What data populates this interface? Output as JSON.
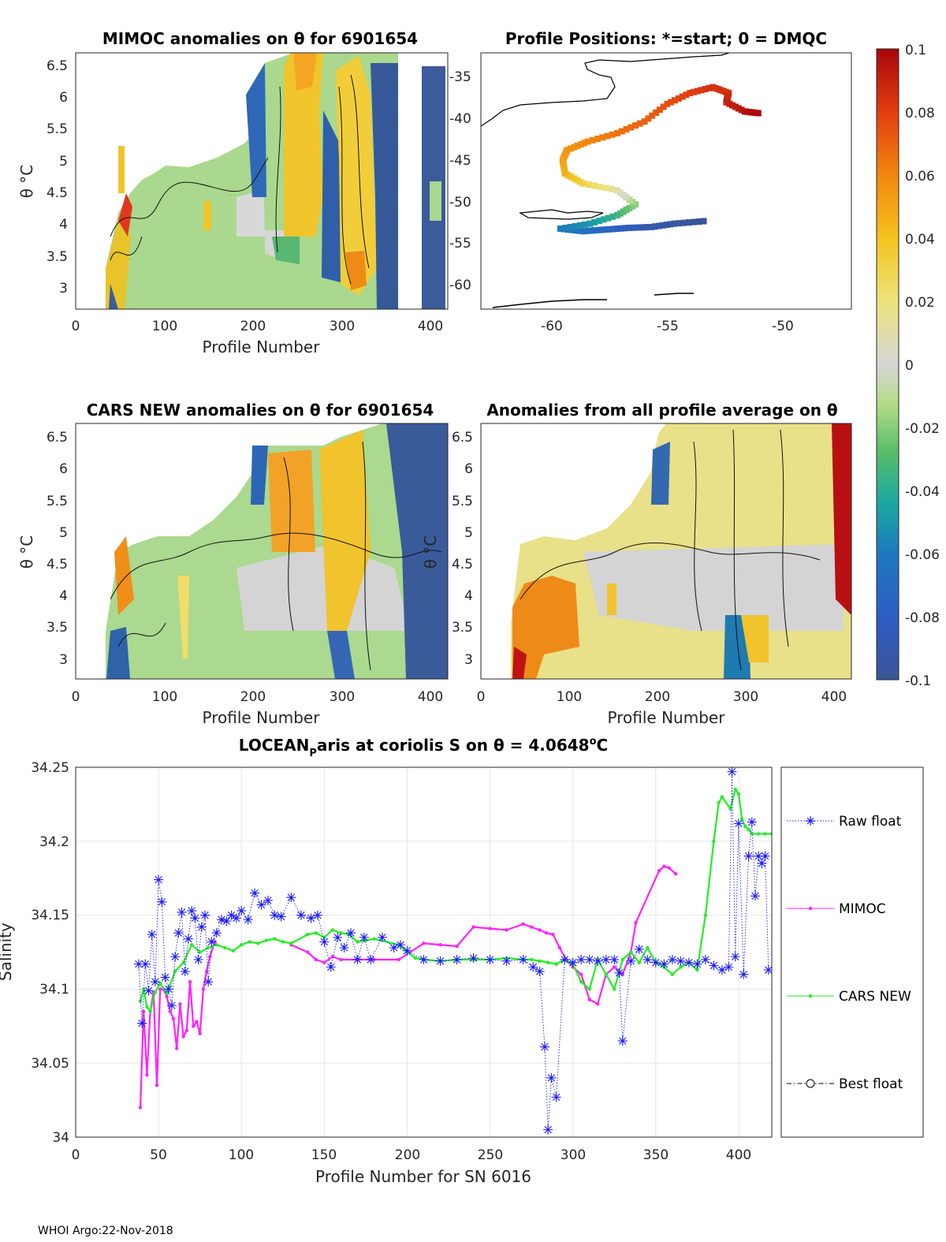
{
  "footer": "WHOI Argo:22-Nov-2018",
  "colors": {
    "raw_float": "#1a1aff",
    "mimoc": "#ff22ff",
    "cars_new": "#22ee22",
    "best_float": "#000000",
    "grid": "#e6e6e6"
  },
  "colorbar": {
    "ticks": [
      "0.1",
      "0.08",
      "0.06",
      "0.04",
      "0.02",
      "0",
      "-0.02",
      "-0.04",
      "-0.06",
      "-0.08",
      "-0.1"
    ],
    "colormap": "parula-like diverging (blue-green-grey-yellow-red)"
  },
  "chart_data": [
    {
      "type": "heatmap",
      "title": "MIMOC anomalies on θ  for 6901654",
      "xlabel": "Profile Number",
      "ylabel": "θ °C",
      "xlim": [
        0,
        420
      ],
      "ylim": [
        2.65,
        6.7
      ],
      "xticks": [
        "0",
        "100",
        "200",
        "300",
        "400"
      ],
      "yticks": [
        "3",
        "3.5",
        "4",
        "4.5",
        "5",
        "5.5",
        "6",
        "6.5"
      ],
      "clim": [
        -0.1,
        0.1
      ]
    },
    {
      "type": "scatter",
      "title": "Profile Positions: *=start; 0 = DMQC",
      "xlabel": "",
      "ylabel": "",
      "xlim": [
        -63.0,
        -46.7
      ],
      "ylim": [
        -63.0,
        -32.4
      ],
      "xticks": [
        "-60",
        "-55",
        "-50"
      ],
      "yticks": [
        "-35",
        "-40",
        "-45",
        "-50",
        "-55",
        "-60"
      ],
      "track": [
        [
          -53.2,
          -52.5
        ],
        [
          -54.5,
          -52.8
        ],
        [
          -55.5,
          -53.2
        ],
        [
          -56.5,
          -53.3
        ],
        [
          -57.5,
          -53.5
        ],
        [
          -58.5,
          -53.7
        ],
        [
          -59.5,
          -53.4
        ],
        [
          -58.2,
          -52.8
        ],
        [
          -57.0,
          -51.8
        ],
        [
          -56.2,
          -50.5
        ],
        [
          -57.0,
          -48.8
        ],
        [
          -58.5,
          -48.0
        ],
        [
          -59.3,
          -46.8
        ],
        [
          -59.4,
          -45.2
        ],
        [
          -59.2,
          -44.0
        ],
        [
          -58.3,
          -43.0
        ],
        [
          -57.0,
          -42.0
        ],
        [
          -55.8,
          -40.6
        ],
        [
          -54.8,
          -38.5
        ],
        [
          -53.8,
          -37.2
        ],
        [
          -52.8,
          -36.5
        ],
        [
          -52.1,
          -37.2
        ],
        [
          -52.2,
          -38.3
        ],
        [
          -51.4,
          -39.4
        ],
        [
          -50.8,
          -39.6
        ]
      ],
      "track_anomaly": [
        -0.1,
        -0.095,
        -0.09,
        -0.085,
        -0.075,
        -0.065,
        -0.06,
        -0.05,
        -0.035,
        -0.02,
        0.01,
        0.03,
        0.045,
        0.05,
        0.055,
        0.06,
        0.065,
        0.07,
        0.075,
        0.08,
        0.085,
        0.085,
        0.09,
        0.095,
        0.1
      ]
    },
    {
      "type": "heatmap",
      "title": "CARS NEW anomalies on θ for 6901654",
      "xlabel": "Profile Number",
      "ylabel": "θ °C",
      "xlim": [
        0,
        420
      ],
      "ylim": [
        2.65,
        6.7
      ],
      "xticks": [
        "0",
        "100",
        "200",
        "300",
        "400"
      ],
      "yticks": [
        "3",
        "3.5",
        "4",
        "4.5",
        "5",
        "5.5",
        "6",
        "6.5"
      ],
      "clim": [
        -0.1,
        0.1
      ]
    },
    {
      "type": "heatmap",
      "title": "Anomalies from all profile average on θ",
      "xlabel": "Profile Number",
      "ylabel": "θ °C",
      "xlim": [
        0,
        420
      ],
      "ylim": [
        2.65,
        6.7
      ],
      "xticks": [
        "0",
        "100",
        "200",
        "300",
        "400"
      ],
      "yticks": [
        "3",
        "3.5",
        "4",
        "4.5",
        "5",
        "5.5",
        "6",
        "6.5"
      ],
      "clim": [
        -0.1,
        0.1
      ]
    },
    {
      "type": "line",
      "title_main": "LOCEAN",
      "title_sub": "P",
      "title_rest": "aris at coriolis S on θ = 4.0648",
      "title_sup": "o",
      "title_end": "C",
      "xlabel": "Profile Number for SN 6016",
      "ylabel": "Salinity",
      "xlim": [
        0,
        420
      ],
      "ylim": [
        34,
        34.25
      ],
      "xticks": [
        "0",
        "50",
        "100",
        "150",
        "200",
        "250",
        "300",
        "350",
        "400"
      ],
      "yticks": [
        "34",
        "34.05",
        "34.1",
        "34.15",
        "34.2",
        "34.25"
      ],
      "grid": true,
      "legend_position": "outside-right",
      "series": [
        {
          "name": "Raw float",
          "style": "dotted line, asterisk markers",
          "x": [
            38,
            40,
            42,
            44,
            46,
            48,
            50,
            52,
            54,
            56,
            58,
            60,
            62,
            64,
            66,
            68,
            70,
            72,
            74,
            76,
            78,
            80,
            82,
            85,
            88,
            91,
            94,
            97,
            100,
            104,
            108,
            112,
            116,
            120,
            124,
            130,
            136,
            142,
            146,
            150,
            154,
            158,
            162,
            166,
            170,
            174,
            178,
            185,
            192,
            196,
            200,
            210,
            220,
            230,
            240,
            250,
            260,
            270,
            276,
            280,
            283,
            285,
            287,
            290,
            295,
            300,
            305,
            310,
            315,
            320,
            325,
            328,
            330,
            335,
            340,
            345,
            350,
            355,
            360,
            365,
            370,
            375,
            380,
            385,
            390,
            394,
            396,
            398,
            400,
            403,
            406,
            408,
            410,
            412,
            414,
            416,
            418
          ],
          "values": [
            34.117,
            34.077,
            34.117,
            34.099,
            34.137,
            34.105,
            34.174,
            34.159,
            34.108,
            34.1,
            34.089,
            34.122,
            34.138,
            34.152,
            34.112,
            34.134,
            34.153,
            34.148,
            34.12,
            34.142,
            34.15,
            34.105,
            34.132,
            34.138,
            34.147,
            34.146,
            34.15,
            34.148,
            34.153,
            34.147,
            34.165,
            34.157,
            34.16,
            34.15,
            34.149,
            34.162,
            34.15,
            34.148,
            34.15,
            34.132,
            34.115,
            34.135,
            34.128,
            34.138,
            34.12,
            34.135,
            34.12,
            34.135,
            34.128,
            34.13,
            34.126,
            34.12,
            34.119,
            34.12,
            34.121,
            34.12,
            34.119,
            34.12,
            34.115,
            34.112,
            34.061,
            34.005,
            34.04,
            34.027,
            34.12,
            34.118,
            34.12,
            34.12,
            34.119,
            34.12,
            34.12,
            34.111,
            34.065,
            34.119,
            34.127,
            34.12,
            34.118,
            34.117,
            34.12,
            34.119,
            34.118,
            34.117,
            34.12,
            34.116,
            34.113,
            34.115,
            34.247,
            34.122,
            34.212,
            34.11,
            34.19,
            34.213,
            34.163,
            34.19,
            34.185,
            34.19,
            34.113
          ]
        },
        {
          "name": "MIMOC",
          "style": "solid line, point markers",
          "x": [
            39,
            41,
            43,
            45,
            47,
            49,
            51,
            53,
            55,
            57,
            59,
            61,
            63,
            65,
            67,
            69,
            71,
            73,
            75,
            77,
            79,
            81,
            84,
            130,
            140,
            145,
            150,
            155,
            160,
            170,
            180,
            195,
            210,
            220,
            230,
            240,
            250,
            260,
            270,
            275,
            280,
            284,
            288,
            292,
            296,
            300,
            305,
            310,
            315,
            320,
            325,
            330,
            335,
            338,
            352,
            355,
            358,
            362
          ],
          "values": [
            34.02,
            34.085,
            34.042,
            34.085,
            34.098,
            34.035,
            34.1,
            34.1,
            34.095,
            34.085,
            34.08,
            34.06,
            34.09,
            34.068,
            34.072,
            34.105,
            34.075,
            34.078,
            34.07,
            34.1,
            34.112,
            34.122,
            34.132,
            34.13,
            34.125,
            34.12,
            34.118,
            34.122,
            34.12,
            34.12,
            34.12,
            34.12,
            34.131,
            34.13,
            34.129,
            34.142,
            34.141,
            34.14,
            34.144,
            34.142,
            34.14,
            34.138,
            34.137,
            34.128,
            34.12,
            34.115,
            34.11,
            34.093,
            34.09,
            34.11,
            34.115,
            34.11,
            34.125,
            34.145,
            34.18,
            34.183,
            34.182,
            34.178
          ]
        },
        {
          "name": "CARS NEW",
          "style": "solid line, point markers",
          "x": [
            39,
            41,
            43,
            45,
            48,
            51,
            55,
            60,
            65,
            70,
            75,
            80,
            85,
            90,
            95,
            100,
            105,
            110,
            115,
            120,
            125,
            130,
            140,
            145,
            150,
            155,
            160,
            165,
            170,
            175,
            180,
            195,
            200,
            205,
            210,
            220,
            230,
            240,
            250,
            260,
            270,
            275,
            280,
            285,
            290,
            295,
            300,
            305,
            310,
            315,
            320,
            325,
            330,
            335,
            340,
            345,
            350,
            355,
            360,
            365,
            370,
            375,
            380,
            385,
            388,
            390,
            395,
            398,
            400,
            402,
            404,
            406,
            408,
            412,
            416,
            420
          ],
          "values": [
            34.092,
            34.1,
            34.088,
            34.085,
            34.098,
            34.104,
            34.097,
            34.112,
            34.118,
            34.13,
            34.125,
            34.128,
            34.13,
            34.128,
            34.126,
            34.13,
            34.132,
            34.131,
            34.133,
            34.134,
            34.132,
            34.131,
            34.137,
            34.138,
            34.135,
            34.14,
            34.138,
            34.137,
            34.132,
            34.133,
            34.134,
            34.13,
            34.125,
            34.121,
            34.12,
            34.119,
            34.12,
            34.12,
            34.12,
            34.121,
            34.12,
            34.12,
            34.119,
            34.118,
            34.117,
            34.12,
            34.117,
            34.105,
            34.1,
            34.12,
            34.11,
            34.1,
            34.12,
            34.125,
            34.118,
            34.128,
            34.118,
            34.115,
            34.11,
            34.115,
            34.118,
            34.113,
            34.15,
            34.2,
            34.226,
            34.23,
            34.222,
            34.235,
            34.232,
            34.215,
            34.21,
            34.208,
            34.205,
            34.205,
            34.205,
            34.205
          ]
        },
        {
          "name": "Best float",
          "style": "dash-dot line, circle markers",
          "x": [],
          "values": []
        }
      ]
    }
  ]
}
